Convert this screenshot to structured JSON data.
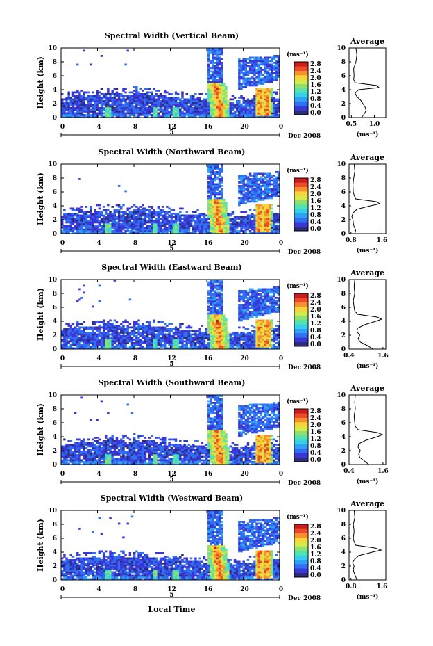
{
  "colorbar": {
    "unit_label": "(ms⁻¹)",
    "ticks": [
      "2.8",
      "2.4",
      "2.0",
      "1.6",
      "1.2",
      "0.8",
      "0.4",
      "0.0"
    ],
    "colors": [
      "#2c2c7a",
      "#3a37d8",
      "#2f6ff0",
      "#2fa2f5",
      "#36d0e8",
      "#52e3b0",
      "#8fe070",
      "#d4e94a",
      "#f6d43a",
      "#f7912f",
      "#ee4a2a",
      "#c91e1e"
    ]
  },
  "x_ticks": [
    "0",
    "4",
    "8",
    "12",
    "16",
    "20",
    "0"
  ],
  "date_label": "Dec 2008",
  "day_label": "5",
  "x_axis_title": "Local Time",
  "y_axis_title": "Height (km)",
  "y_ticks": [
    "0",
    "2",
    "4",
    "6",
    "8",
    "10"
  ],
  "avg_y_ticks": [
    "0",
    "2",
    "4",
    "6",
    "8",
    "10"
  ],
  "avg_title": "Average",
  "avg_unit": "(ms⁻¹)",
  "chart_data": [
    {
      "type": "heatmap",
      "title": "Spectral Width (Vertical Beam)",
      "xlabel": "Local Time",
      "ylabel": "Height (km)",
      "xlim": [
        0,
        24
      ],
      "ylim": [
        0,
        10
      ],
      "zlim": [
        0.0,
        2.8
      ],
      "zunit": "ms⁻¹",
      "average_profile": {
        "title": "Average",
        "xlabel": "(ms⁻¹)",
        "x_ticks": [
          "0.5",
          "1.0"
        ],
        "xlim": [
          0.45,
          1.25
        ],
        "height_km": [
          0,
          0.5,
          1,
          1.5,
          2,
          2.5,
          3,
          3.5,
          4,
          4.3,
          4.6,
          5,
          5.5,
          6,
          7,
          8,
          9,
          10
        ],
        "values": [
          0.72,
          0.78,
          0.82,
          0.8,
          0.75,
          0.7,
          0.62,
          0.58,
          0.66,
          1.1,
          1.05,
          0.58,
          0.55,
          0.56,
          0.55,
          0.6,
          0.62,
          0.6
        ]
      }
    },
    {
      "type": "heatmap",
      "title": "Spectral Width (Northward Beam)",
      "xlabel": "Local Time",
      "ylabel": "Height (km)",
      "xlim": [
        0,
        24
      ],
      "ylim": [
        0,
        10
      ],
      "zlim": [
        0.0,
        2.8
      ],
      "zunit": "ms⁻¹",
      "average_profile": {
        "title": "Average",
        "xlabel": "(ms⁻¹)",
        "x_ticks": [
          "0.8",
          "1.6"
        ],
        "xlim": [
          0.75,
          1.7
        ],
        "height_km": [
          0,
          0.5,
          1,
          1.5,
          2,
          2.5,
          3,
          3.5,
          4,
          4.3,
          4.6,
          5,
          5.5,
          6,
          7,
          8,
          9,
          10
        ],
        "values": [
          0.9,
          0.92,
          0.88,
          0.86,
          0.85,
          0.82,
          0.86,
          0.95,
          1.3,
          1.55,
          1.45,
          0.92,
          0.88,
          0.86,
          0.85,
          0.87,
          0.9,
          0.88
        ]
      }
    },
    {
      "type": "heatmap",
      "title": "Spectral Width (Eastward Beam)",
      "xlabel": "Local Time",
      "ylabel": "Height (km)",
      "xlim": [
        0,
        24
      ],
      "ylim": [
        0,
        10
      ],
      "zlim": [
        0.0,
        2.8
      ],
      "zunit": "ms⁻¹",
      "average_profile": {
        "title": "Average",
        "xlabel": "(ms⁻¹)",
        "x_ticks": [
          "0.4",
          "1.6"
        ],
        "xlim": [
          0.4,
          1.7
        ],
        "height_km": [
          0,
          0.5,
          1,
          1.5,
          2,
          2.5,
          3,
          3.5,
          4,
          4.3,
          4.6,
          5,
          5.5,
          6,
          7,
          8,
          9,
          10
        ],
        "values": [
          1.25,
          1.05,
          0.8,
          0.72,
          0.78,
          0.68,
          0.7,
          0.95,
          1.35,
          1.55,
          1.4,
          0.7,
          0.6,
          0.58,
          0.55,
          0.6,
          0.58,
          0.6
        ]
      }
    },
    {
      "type": "heatmap",
      "title": "Spectral Width (Southward Beam)",
      "xlabel": "Local Time",
      "ylabel": "Height (km)",
      "xlim": [
        0,
        24
      ],
      "ylim": [
        0,
        10
      ],
      "zlim": [
        0.0,
        2.8
      ],
      "zunit": "ms⁻¹",
      "average_profile": {
        "title": "Average",
        "xlabel": "(ms⁻¹)",
        "x_ticks": [
          "0.4",
          "1.6"
        ],
        "xlim": [
          0.4,
          1.7
        ],
        "height_km": [
          0,
          0.5,
          1,
          1.5,
          2,
          2.5,
          3,
          3.5,
          4,
          4.3,
          4.6,
          5,
          5.5,
          6,
          7,
          8,
          9,
          10
        ],
        "values": [
          1.1,
          0.95,
          0.78,
          0.74,
          0.8,
          0.72,
          0.74,
          1.0,
          1.4,
          1.58,
          1.4,
          0.72,
          0.62,
          0.6,
          0.58,
          0.62,
          0.6,
          0.62
        ]
      }
    },
    {
      "type": "heatmap",
      "title": "Spectral Width (Westward Beam)",
      "xlabel": "Local Time",
      "ylabel": "Height (km)",
      "xlim": [
        0,
        24
      ],
      "ylim": [
        0,
        10
      ],
      "zlim": [
        0.0,
        2.8
      ],
      "zunit": "ms⁻¹",
      "average_profile": {
        "title": "Average",
        "xlabel": "(ms⁻¹)",
        "x_ticks": [
          "0.8",
          "1.6"
        ],
        "xlim": [
          0.75,
          1.7
        ],
        "height_km": [
          0,
          0.5,
          1,
          1.5,
          2,
          2.5,
          3,
          3.5,
          4,
          4.3,
          4.6,
          5,
          5.5,
          6,
          7,
          8,
          9,
          10
        ],
        "values": [
          0.95,
          0.92,
          0.88,
          0.86,
          0.88,
          0.84,
          0.9,
          1.0,
          1.35,
          1.58,
          1.42,
          0.92,
          0.88,
          0.86,
          0.88,
          0.86,
          0.9,
          0.88
        ]
      }
    }
  ]
}
